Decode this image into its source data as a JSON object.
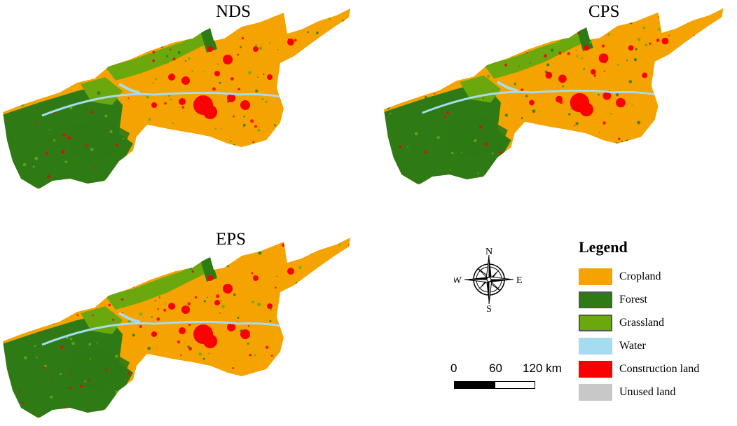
{
  "panels": [
    {
      "title": "NDS"
    },
    {
      "title": "CPS"
    },
    {
      "title": "EPS"
    }
  ],
  "compass": {
    "n": "N",
    "s": "S",
    "e": "E",
    "w": "W"
  },
  "scale": {
    "labels": [
      "0",
      "60",
      "120 km"
    ]
  },
  "legend": {
    "title": "Legend",
    "items": [
      {
        "label": "Cropland",
        "color": "#f5a300"
      },
      {
        "label": "Forest",
        "color": "#2e7a14"
      },
      {
        "label": "Grassland",
        "color": "#6aa80e"
      },
      {
        "label": "Water",
        "color": "#a6dcf0"
      },
      {
        "label": "Construction land",
        "color": "#fa0000"
      },
      {
        "label": "Unused land",
        "color": "#c8c8c8"
      }
    ]
  }
}
